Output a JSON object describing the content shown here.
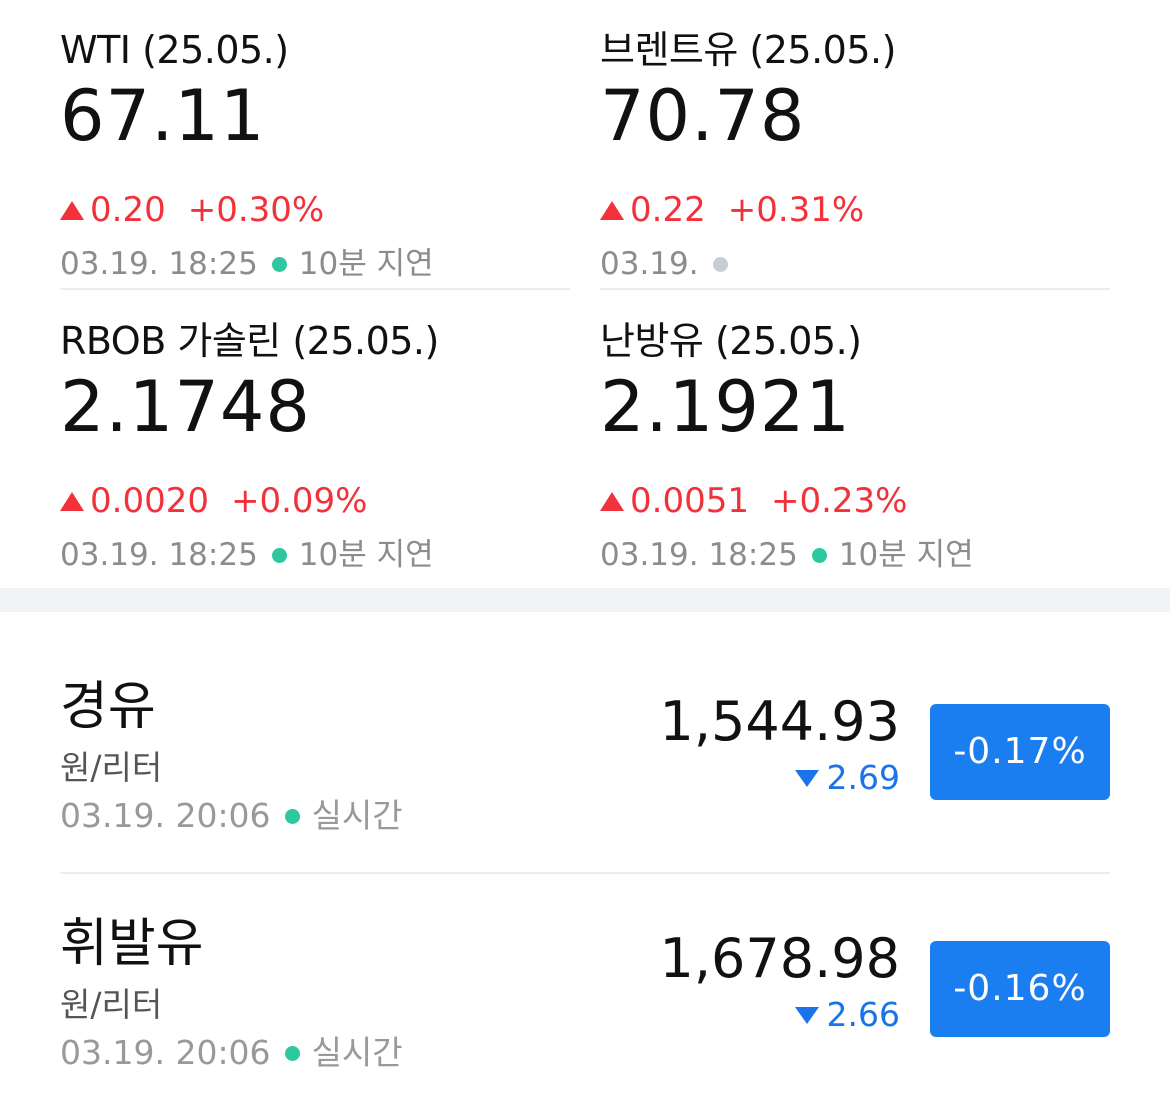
{
  "futures": [
    {
      "name": "WTI (25.05.)",
      "price": "67.11",
      "change": "0.20",
      "change_pct": "+0.30%",
      "date": "03.19. 18:25",
      "status": "10분 지연",
      "status_color": "#2fc7a0"
    },
    {
      "name": "브렌트유 (25.05.)",
      "price": "70.78",
      "change": "0.22",
      "change_pct": "+0.31%",
      "date": "03.19.",
      "status": "",
      "status_color": "#c9ced6"
    },
    {
      "name": "RBOB 가솔린 (25.05.)",
      "price": "2.1748",
      "change": "0.0020",
      "change_pct": "+0.09%",
      "date": "03.19. 18:25",
      "status": "10분 지연",
      "status_color": "#2fc7a0"
    },
    {
      "name": "난방유 (25.05.)",
      "price": "2.1921",
      "change": "0.0051",
      "change_pct": "+0.23%",
      "date": "03.19. 18:25",
      "status": "10분 지연",
      "status_color": "#2fc7a0"
    }
  ],
  "domestic": [
    {
      "name": "경유",
      "unit": "원/리터",
      "date": "03.19. 20:06",
      "status": "실시간",
      "price": "1,544.93",
      "change": "2.69",
      "change_pct": "-0.17%"
    },
    {
      "name": "휘발유",
      "unit": "원/리터",
      "date": "03.19. 20:06",
      "status": "실시간",
      "price": "1,678.98",
      "change": "2.66",
      "change_pct": "-0.16%"
    }
  ],
  "colors": {
    "up": "#f2313b",
    "down": "#1a73e8",
    "badge": "#1a7df0",
    "live_dot": "#2fc7a0"
  }
}
